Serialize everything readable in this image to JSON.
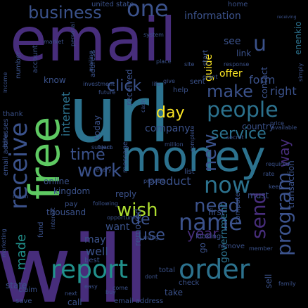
{
  "background": "#000000",
  "palette": {
    "purple": "#472d7b",
    "indigo": "#3b528b",
    "steel": "#2c728e",
    "teal": "#21918c",
    "sea": "#28ae80",
    "green": "#5ec962",
    "lime": "#addc30",
    "yellow": "#fde725",
    "deep": "#440154"
  },
  "words": [
    {
      "text": "email",
      "color": "purple"
    },
    {
      "text": "will",
      "color": "purple"
    },
    {
      "text": "url",
      "color": "steel"
    },
    {
      "text": "money",
      "color": "steel"
    },
    {
      "text": "free",
      "color": "green"
    },
    {
      "text": "receive",
      "color": "indigo"
    },
    {
      "text": "report",
      "color": "teal"
    },
    {
      "text": "order",
      "color": "steel"
    },
    {
      "text": "people",
      "color": "steel"
    },
    {
      "text": "business",
      "color": "indigo"
    },
    {
      "text": "one",
      "color": "indigo"
    },
    {
      "text": "make",
      "color": "indigo"
    },
    {
      "text": "program",
      "color": "indigo"
    },
    {
      "text": "click",
      "color": "indigo"
    },
    {
      "text": "time",
      "color": "indigo"
    },
    {
      "text": "work",
      "color": "indigo"
    },
    {
      "text": "now",
      "color": "steel"
    },
    {
      "text": "new",
      "color": "indigo"
    },
    {
      "text": "name",
      "color": "indigo"
    },
    {
      "text": "need",
      "color": "indigo"
    },
    {
      "text": "service",
      "color": "steel"
    },
    {
      "text": "wish",
      "color": "lime"
    },
    {
      "text": "day",
      "color": "yellow"
    },
    {
      "text": "send",
      "color": "purple"
    },
    {
      "text": "way",
      "color": "purple"
    },
    {
      "text": "internet",
      "color": "steel"
    },
    {
      "text": "de",
      "color": "indigo"
    },
    {
      "text": "u",
      "color": "indigo"
    },
    {
      "text": "use",
      "color": "indigo"
    },
    {
      "text": "made",
      "color": "teal"
    },
    {
      "text": "year",
      "color": "purple"
    },
    {
      "text": "government",
      "color": "steel"
    },
    {
      "text": "information",
      "color": "indigo"
    },
    {
      "text": "company",
      "color": "indigo"
    },
    {
      "text": "may",
      "color": "indigo"
    },
    {
      "text": "well",
      "color": "indigo"
    },
    {
      "text": "see",
      "color": "indigo"
    },
    {
      "text": "offer",
      "color": "yellow"
    },
    {
      "text": "form",
      "color": "indigo"
    },
    {
      "text": "right",
      "color": "indigo"
    },
    {
      "text": "want",
      "color": "indigo"
    },
    {
      "text": "product",
      "color": "indigo"
    },
    {
      "text": "guide",
      "color": "yellow"
    },
    {
      "text": "contact",
      "color": "indigo"
    },
    {
      "text": "received",
      "color": "indigo"
    },
    {
      "text": "removed",
      "color": "indigo"
    },
    {
      "text": "know",
      "color": "indigo"
    },
    {
      "text": "number",
      "color": "indigo"
    },
    {
      "text": "today",
      "color": "indigo"
    },
    {
      "text": "country",
      "color": "indigo"
    },
    {
      "text": "transaction",
      "color": "indigo"
    },
    {
      "text": "enenkio",
      "color": "steel"
    },
    {
      "text": "link",
      "color": "indigo"
    },
    {
      "text": "first",
      "color": "indigo"
    },
    {
      "text": "reply",
      "color": "indigo"
    },
    {
      "text": "thousand",
      "color": "indigo"
    },
    {
      "text": "kingdom",
      "color": "indigo"
    },
    {
      "text": "online",
      "color": "indigo"
    },
    {
      "text": "must",
      "color": "indigo"
    },
    {
      "text": "go",
      "color": "indigo"
    },
    {
      "text": "state",
      "color": "indigo"
    },
    {
      "text": "save",
      "color": "indigo"
    },
    {
      "text": "call",
      "color": "indigo"
    },
    {
      "text": "take",
      "color": "indigo"
    },
    {
      "text": "check",
      "color": "indigo"
    },
    {
      "text": "email address",
      "color": "indigo"
    },
    {
      "text": "sell",
      "color": "indigo"
    },
    {
      "text": "help",
      "color": "indigo"
    },
    {
      "text": "sent",
      "color": "indigo"
    },
    {
      "text": "list",
      "color": "indigo"
    },
    {
      "text": "computer",
      "color": "indigo"
    },
    {
      "text": "message",
      "color": "indigo"
    },
    {
      "text": "member",
      "color": "indigo"
    },
    {
      "text": "best",
      "color": "indigo"
    },
    {
      "text": "looking",
      "color": "indigo"
    },
    {
      "text": "home",
      "color": "indigo"
    },
    {
      "text": "address",
      "color": "indigo"
    },
    {
      "text": "account",
      "color": "indigo"
    },
    {
      "text": "dollar",
      "color": "indigo"
    },
    {
      "text": "thank",
      "color": "indigo"
    },
    {
      "text": "claim",
      "color": "indigo"
    },
    {
      "text": "fund",
      "color": "indigo"
    },
    {
      "text": "united state",
      "color": "indigo"
    },
    {
      "text": "system",
      "color": "indigo"
    },
    {
      "text": "following",
      "color": "indigo"
    },
    {
      "text": "mailing",
      "color": "indigo"
    },
    {
      "text": "investment",
      "color": "indigo"
    },
    {
      "text": "life",
      "color": "indigo"
    },
    {
      "text": "simply",
      "color": "indigo"
    },
    {
      "text": "response",
      "color": "indigo"
    },
    {
      "text": "place",
      "color": "indigo"
    },
    {
      "text": "keep",
      "color": "indigo"
    },
    {
      "text": "pay",
      "color": "indigo"
    },
    {
      "text": "remove",
      "color": "indigo"
    },
    {
      "text": "price",
      "color": "indigo"
    },
    {
      "text": "interest",
      "color": "indigo"
    },
    {
      "text": "total",
      "color": "indigo"
    },
    {
      "text": "learn",
      "color": "indigo"
    },
    {
      "text": "give",
      "color": "indigo"
    },
    {
      "text": "using",
      "color": "indigo"
    },
    {
      "text": "site",
      "color": "indigo"
    },
    {
      "text": "start",
      "color": "indigo"
    },
    {
      "text": "cash",
      "color": "indigo"
    },
    {
      "text": "million",
      "color": "indigo"
    },
    {
      "text": "opportunity",
      "color": "indigo"
    },
    {
      "text": "required",
      "color": "indigo"
    },
    {
      "text": "rate",
      "color": "indigo"
    },
    {
      "text": "family",
      "color": "indigo"
    },
    {
      "text": "every",
      "color": "indigo"
    },
    {
      "text": "personal",
      "color": "indigo"
    },
    {
      "text": "market",
      "color": "indigo"
    },
    {
      "text": "income",
      "color": "indigo"
    },
    {
      "text": "marketing",
      "color": "indigo"
    },
    {
      "text": "secret",
      "color": "indigo"
    },
    {
      "text": "dont",
      "color": "indigo"
    },
    {
      "text": "available",
      "color": "indigo"
    },
    {
      "text": "come",
      "color": "indigo"
    },
    {
      "text": "much",
      "color": "indigo"
    },
    {
      "text": "provide",
      "color": "indigo"
    },
    {
      "text": "email addresses",
      "color": "indigo"
    },
    {
      "text": "future",
      "color": "indigo"
    },
    {
      "text": "grant",
      "color": "indigo"
    },
    {
      "text": "buy",
      "color": "indigo"
    },
    {
      "text": "subject",
      "color": "indigo"
    },
    {
      "text": "easy",
      "color": "indigo"
    },
    {
      "text": "next",
      "color": "indigo"
    },
    {
      "text": "receiving",
      "color": "indigo"
    },
    {
      "text": "complete",
      "color": "indigo"
    }
  ]
}
